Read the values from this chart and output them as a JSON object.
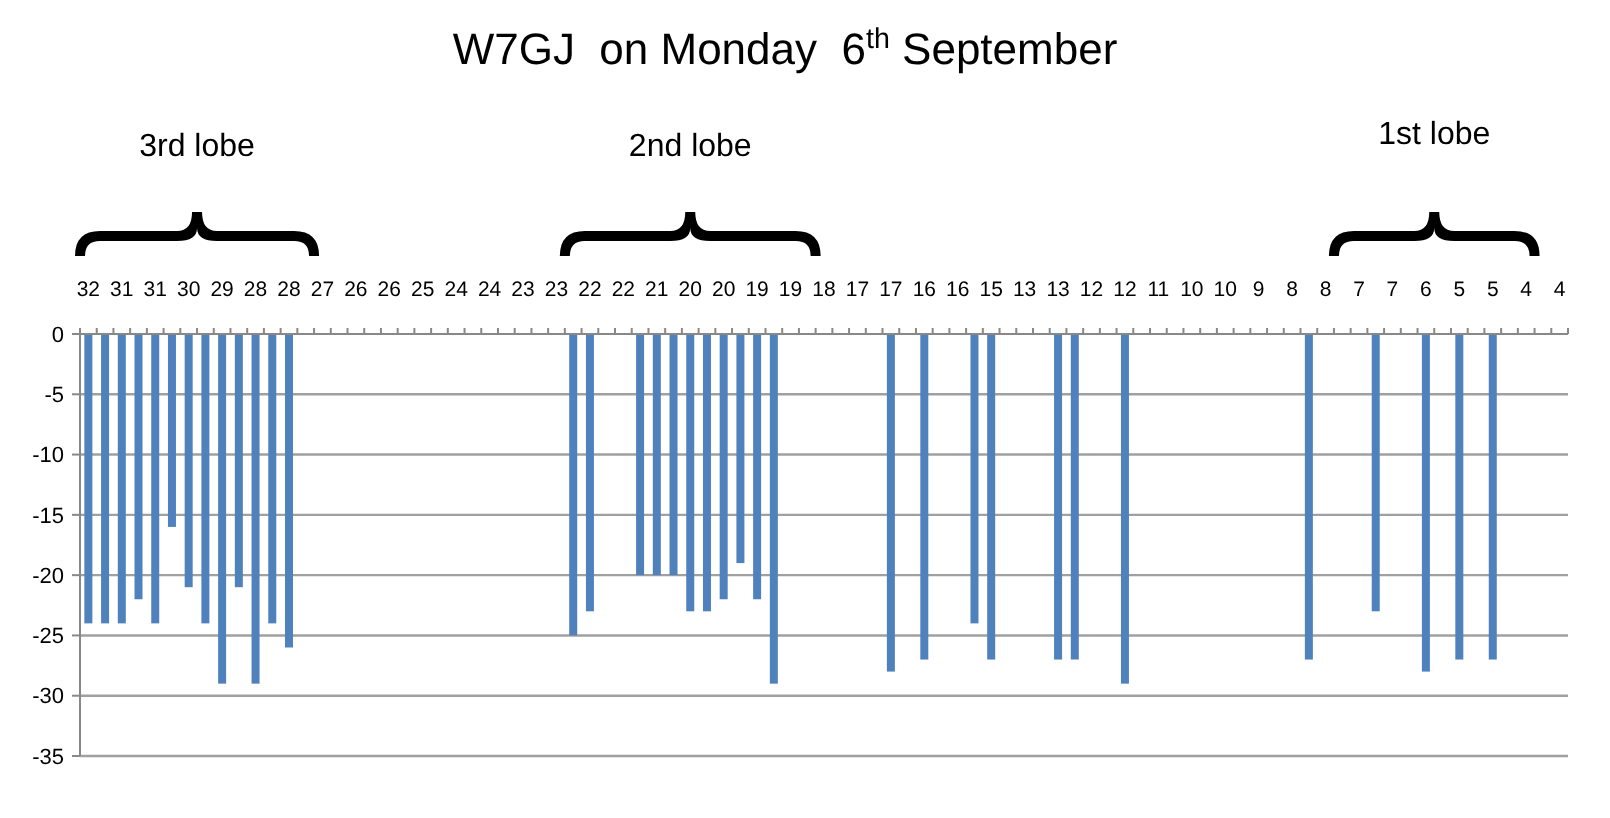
{
  "chart_data": {
    "type": "bar",
    "title": "W7GJ  on Monday  6$^{th}$ September",
    "categories": [
      "32",
      null,
      "31",
      null,
      "31",
      null,
      "30",
      null,
      "29",
      null,
      "28",
      null,
      "28",
      null,
      "27",
      null,
      "26",
      null,
      "26",
      null,
      "25",
      null,
      "24",
      null,
      "24",
      null,
      "23",
      null,
      "23",
      null,
      "22",
      null,
      "22",
      null,
      "21",
      null,
      "20",
      null,
      "20",
      null,
      "19",
      null,
      "19",
      null,
      "18",
      null,
      "17",
      null,
      "17",
      null,
      "16",
      null,
      "16",
      null,
      "15",
      null,
      "13",
      null,
      "13",
      null,
      "12",
      null,
      "12",
      null,
      "11",
      null,
      "10",
      null,
      "10",
      null,
      "9",
      null,
      "8",
      null,
      "8",
      null,
      "7",
      null,
      "7",
      null,
      "6",
      null,
      "5",
      null,
      "5",
      null,
      "4",
      null,
      "4"
    ],
    "series": [
      {
        "color": "#4f81bd",
        "values": [
          -24,
          -24,
          -24,
          -22,
          -24,
          -16,
          -21,
          -24,
          -29,
          -21,
          -29,
          -24,
          -26,
          null,
          null,
          null,
          null,
          null,
          null,
          null,
          null,
          null,
          null,
          null,
          null,
          null,
          null,
          null,
          null,
          -25,
          -23,
          null,
          null,
          -20,
          -20,
          -20,
          -23,
          -23,
          -22,
          -19,
          -22,
          -29,
          null,
          null,
          null,
          null,
          null,
          null,
          -28,
          null,
          -27,
          null,
          null,
          -24,
          -27,
          null,
          null,
          null,
          -27,
          -27,
          null,
          null,
          -29,
          null,
          null,
          null,
          null,
          null,
          null,
          null,
          null,
          null,
          null,
          -27,
          null,
          null,
          null,
          -23,
          null,
          null,
          -28,
          null,
          -27,
          null,
          -27,
          null,
          null,
          null,
          null
        ]
      }
    ],
    "ylim": [
      -35,
      0
    ],
    "yticks": [
      -35,
      -30,
      -25,
      -20,
      -15,
      -10,
      -5,
      0
    ],
    "grid": "y",
    "annotations": [
      "3rd lobe",
      "2nd lobe",
      "1st lobe"
    ]
  }
}
